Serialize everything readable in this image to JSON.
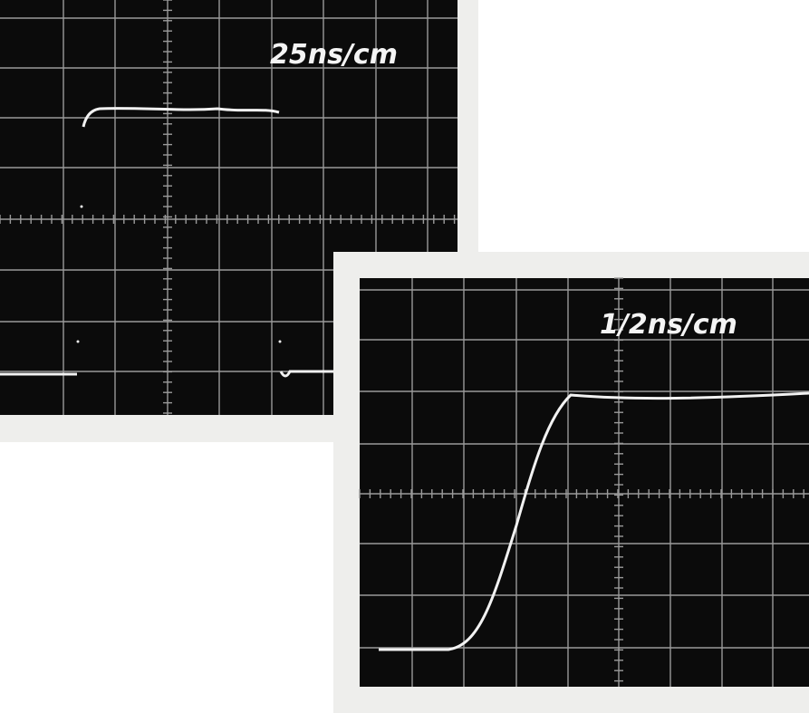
{
  "photos": [
    {
      "label": "25ns/cm"
    },
    {
      "label": "1/2ns/cm"
    }
  ]
}
